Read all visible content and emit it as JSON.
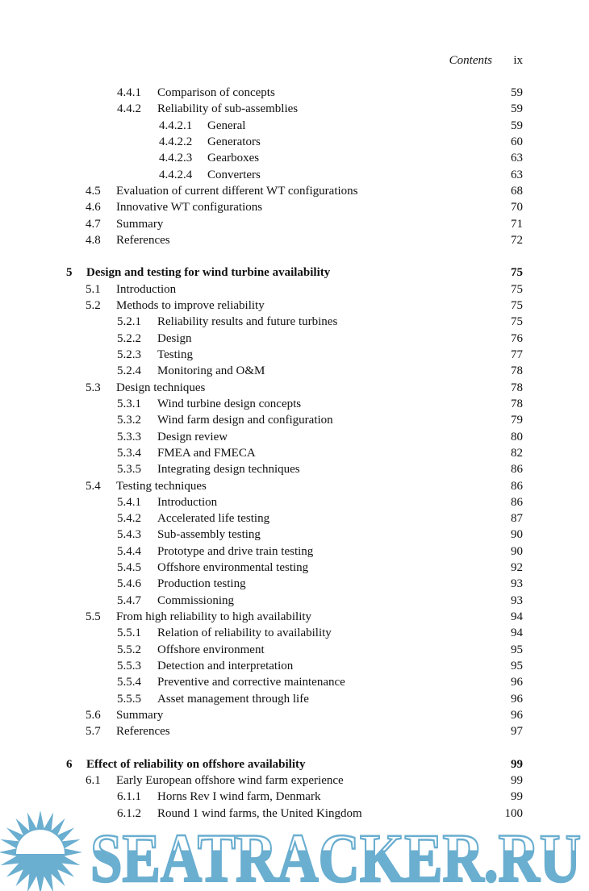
{
  "header": {
    "running_title": "Contents",
    "page_number": "ix"
  },
  "entries": [
    {
      "level": 2,
      "number": "4.4.1",
      "title": "Comparison of concepts",
      "page": "59"
    },
    {
      "level": 2,
      "number": "4.4.2",
      "title": "Reliability of sub-assemblies",
      "page": "59"
    },
    {
      "level": 3,
      "number": "4.4.2.1",
      "title": "General",
      "page": "59"
    },
    {
      "level": 3,
      "number": "4.4.2.2",
      "title": "Generators",
      "page": "60"
    },
    {
      "level": 3,
      "number": "4.4.2.3",
      "title": "Gearboxes",
      "page": "63"
    },
    {
      "level": 3,
      "number": "4.4.2.4",
      "title": "Converters",
      "page": "63"
    },
    {
      "level": 1,
      "number": "4.5",
      "title": "Evaluation of current different WT configurations",
      "page": "68"
    },
    {
      "level": 1,
      "number": "4.6",
      "title": "Innovative WT configurations",
      "page": "70"
    },
    {
      "level": 1,
      "number": "4.7",
      "title": "Summary",
      "page": "71"
    },
    {
      "level": 1,
      "number": "4.8",
      "title": "References",
      "page": "72"
    },
    {
      "level": 0,
      "number": "5",
      "title": "Design and testing for wind turbine availability",
      "page": "75"
    },
    {
      "level": 1,
      "number": "5.1",
      "title": "Introduction",
      "page": "75"
    },
    {
      "level": 1,
      "number": "5.2",
      "title": "Methods to improve reliability",
      "page": "75"
    },
    {
      "level": 2,
      "number": "5.2.1",
      "title": "Reliability results and future turbines",
      "page": "75"
    },
    {
      "level": 2,
      "number": "5.2.2",
      "title": "Design",
      "page": "76"
    },
    {
      "level": 2,
      "number": "5.2.3",
      "title": "Testing",
      "page": "77"
    },
    {
      "level": 2,
      "number": "5.2.4",
      "title": "Monitoring and O&M",
      "page": "78"
    },
    {
      "level": 1,
      "number": "5.3",
      "title": "Design techniques",
      "page": "78"
    },
    {
      "level": 2,
      "number": "5.3.1",
      "title": "Wind turbine design concepts",
      "page": "78"
    },
    {
      "level": 2,
      "number": "5.3.2",
      "title": "Wind farm design and configuration",
      "page": "79"
    },
    {
      "level": 2,
      "number": "5.3.3",
      "title": "Design review",
      "page": "80"
    },
    {
      "level": 2,
      "number": "5.3.4",
      "title": "FMEA and FMECA",
      "page": "82"
    },
    {
      "level": 2,
      "number": "5.3.5",
      "title": "Integrating design techniques",
      "page": "86"
    },
    {
      "level": 1,
      "number": "5.4",
      "title": "Testing techniques",
      "page": "86"
    },
    {
      "level": 2,
      "number": "5.4.1",
      "title": "Introduction",
      "page": "86"
    },
    {
      "level": 2,
      "number": "5.4.2",
      "title": "Accelerated life testing",
      "page": "87"
    },
    {
      "level": 2,
      "number": "5.4.3",
      "title": "Sub-assembly testing",
      "page": "90"
    },
    {
      "level": 2,
      "number": "5.4.4",
      "title": "Prototype and drive train testing",
      "page": "90"
    },
    {
      "level": 2,
      "number": "5.4.5",
      "title": "Offshore environmental testing",
      "page": "92"
    },
    {
      "level": 2,
      "number": "5.4.6",
      "title": "Production testing",
      "page": "93"
    },
    {
      "level": 2,
      "number": "5.4.7",
      "title": "Commissioning",
      "page": "93"
    },
    {
      "level": 1,
      "number": "5.5",
      "title": "From high reliability to high availability",
      "page": "94"
    },
    {
      "level": 2,
      "number": "5.5.1",
      "title": "Relation of reliability to availability",
      "page": "94"
    },
    {
      "level": 2,
      "number": "5.5.2",
      "title": "Offshore environment",
      "page": "95"
    },
    {
      "level": 2,
      "number": "5.5.3",
      "title": "Detection and interpretation",
      "page": "95"
    },
    {
      "level": 2,
      "number": "5.5.4",
      "title": "Preventive and corrective maintenance",
      "page": "96"
    },
    {
      "level": 2,
      "number": "5.5.5",
      "title": "Asset management through life",
      "page": "96"
    },
    {
      "level": 1,
      "number": "5.6",
      "title": "Summary",
      "page": "96"
    },
    {
      "level": 1,
      "number": "5.7",
      "title": "References",
      "page": "97"
    },
    {
      "level": 0,
      "number": "6",
      "title": "Effect of reliability on offshore availability",
      "page": "99"
    },
    {
      "level": 1,
      "number": "6.1",
      "title": "Early European offshore wind farm experience",
      "page": "99"
    },
    {
      "level": 2,
      "number": "6.1.1",
      "title": "Horns Rev I wind farm, Denmark",
      "page": "99"
    },
    {
      "level": 2,
      "number": "6.1.2",
      "title": "Round 1 wind farms, the United Kingdom",
      "page": "100"
    }
  ],
  "watermark": {
    "text": "SEATRACKER.RU",
    "icon": "sun-icon",
    "color": "#6aaed0"
  }
}
